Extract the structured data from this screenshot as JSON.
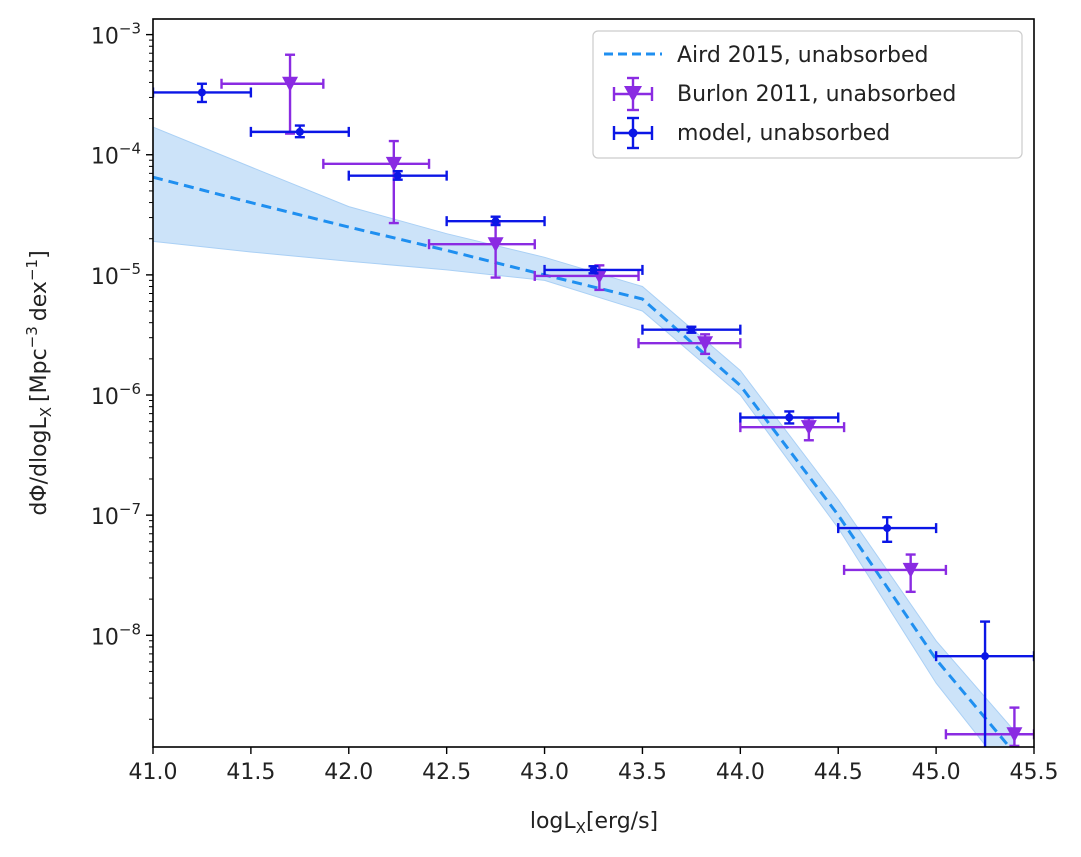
{
  "chart_data": {
    "type": "scatter",
    "xlabel": "logL",
    "xlabel_sub": "X",
    "xlabel_unit": "[erg/s]",
    "ylabel_prefix": "dΦ/dlogL",
    "ylabel_sub": "X",
    "ylabel_unit_open": "[Mpc",
    "ylabel_exp1": "−3",
    "ylabel_mid": "dex",
    "ylabel_exp2": "−1",
    "ylabel_close": "]",
    "xlim": [
      41.0,
      45.5
    ],
    "ylim_log10": [
      -8.93,
      -2.87
    ],
    "yscale": "log",
    "x_ticks": [
      {
        "v": 41.0,
        "label": "41.0"
      },
      {
        "v": 41.5,
        "label": "41.5"
      },
      {
        "v": 42.0,
        "label": "42.0"
      },
      {
        "v": 42.5,
        "label": "42.5"
      },
      {
        "v": 43.0,
        "label": "43.0"
      },
      {
        "v": 43.5,
        "label": "43.5"
      },
      {
        "v": 44.0,
        "label": "44.0"
      },
      {
        "v": 44.5,
        "label": "44.5"
      },
      {
        "v": 45.0,
        "label": "45.0"
      },
      {
        "v": 45.5,
        "label": "45.5"
      }
    ],
    "y_ticks": [
      {
        "exp": -3,
        "base": "10",
        "sup": "−3"
      },
      {
        "exp": -4,
        "base": "10",
        "sup": "−4"
      },
      {
        "exp": -5,
        "base": "10",
        "sup": "−5"
      },
      {
        "exp": -6,
        "base": "10",
        "sup": "−6"
      },
      {
        "exp": -7,
        "base": "10",
        "sup": "−7"
      },
      {
        "exp": -8,
        "base": "10",
        "sup": "−8"
      }
    ],
    "legend_position": "upper-right",
    "series": [
      {
        "name": "Aird 2015, unabsorbed",
        "kind": "line-band",
        "color": "#1f8ff0",
        "band_color": "#aad0f5",
        "x": [
          41.0,
          41.5,
          42.0,
          42.5,
          43.0,
          43.5,
          44.0,
          44.5,
          45.0,
          45.4
        ],
        "y": [
          6.5e-05,
          4e-05,
          2.5e-05,
          1.6e-05,
          1e-05,
          6.3e-06,
          1.2e-06,
          1e-07,
          6.3e-09,
          1.05e-09
        ],
        "y_low": [
          1.9e-05,
          1.55e-05,
          1.3e-05,
          1.1e-05,
          9e-06,
          5e-06,
          1e-06,
          7.8e-08,
          4e-09,
          6e-10
        ],
        "y_high": [
          0.00017,
          7.9e-05,
          3.7e-05,
          2.2e-05,
          1.4e-05,
          8e-06,
          1.6e-06,
          1.35e-07,
          9e-09,
          1.6e-09
        ]
      },
      {
        "name": "Burlon 2011, unabsorbed",
        "kind": "errorbar-triangle",
        "color": "#8a2be2",
        "points": [
          {
            "x": 41.7,
            "xlo": 41.35,
            "xhi": 41.87,
            "y": 0.00039,
            "ylo": 0.00015,
            "yhi": 0.00068
          },
          {
            "x": 42.23,
            "xlo": 41.87,
            "xhi": 42.41,
            "y": 8.4e-05,
            "ylo": 2.7e-05,
            "yhi": 0.00013
          },
          {
            "x": 42.75,
            "xlo": 42.41,
            "xhi": 42.95,
            "y": 1.8e-05,
            "ylo": 9.5e-06,
            "yhi": 2.7e-05
          },
          {
            "x": 43.28,
            "xlo": 42.95,
            "xhi": 43.48,
            "y": 9.8e-06,
            "ylo": 7.5e-06,
            "yhi": 1.2e-05
          },
          {
            "x": 43.82,
            "xlo": 43.48,
            "xhi": 44.0,
            "y": 2.7e-06,
            "ylo": 2.2e-06,
            "yhi": 3.2e-06
          },
          {
            "x": 44.35,
            "xlo": 44.0,
            "xhi": 44.53,
            "y": 5.4e-07,
            "ylo": 4.2e-07,
            "yhi": 6.4e-07
          },
          {
            "x": 44.87,
            "xlo": 44.53,
            "xhi": 45.05,
            "y": 3.5e-08,
            "ylo": 2.3e-08,
            "yhi": 4.7e-08
          },
          {
            "x": 45.4,
            "xlo": 45.05,
            "xhi": 45.5,
            "y": 1.5e-09,
            "ylo": 1.2e-09,
            "yhi": 2.5e-09
          }
        ]
      },
      {
        "name": "model, unabsorbed",
        "kind": "errorbar-dot",
        "color": "#0b16e6",
        "points": [
          {
            "x": 41.25,
            "xlo": 41.0,
            "xhi": 41.5,
            "y": 0.00033,
            "ylo": 0.000275,
            "yhi": 0.00039
          },
          {
            "x": 41.75,
            "xlo": 41.5,
            "xhi": 42.0,
            "y": 0.000155,
            "ylo": 0.00014,
            "yhi": 0.000175
          },
          {
            "x": 42.25,
            "xlo": 42.0,
            "xhi": 42.5,
            "y": 6.7e-05,
            "ylo": 6.2e-05,
            "yhi": 7.3e-05
          },
          {
            "x": 42.75,
            "xlo": 42.5,
            "xhi": 43.0,
            "y": 2.8e-05,
            "ylo": 2.6e-05,
            "yhi": 3.05e-05
          },
          {
            "x": 43.25,
            "xlo": 43.0,
            "xhi": 43.5,
            "y": 1.1e-05,
            "ylo": 1.03e-05,
            "yhi": 1.18e-05
          },
          {
            "x": 43.75,
            "xlo": 43.5,
            "xhi": 44.0,
            "y": 3.5e-06,
            "ylo": 3.3e-06,
            "yhi": 3.7e-06
          },
          {
            "x": 44.25,
            "xlo": 44.0,
            "xhi": 44.5,
            "y": 6.5e-07,
            "ylo": 5.8e-07,
            "yhi": 7.3e-07
          },
          {
            "x": 44.75,
            "xlo": 44.5,
            "xhi": 45.0,
            "y": 7.8e-08,
            "ylo": 6e-08,
            "yhi": 9.6e-08
          },
          {
            "x": 45.25,
            "xlo": 45.0,
            "xhi": 45.5,
            "y": 6.7e-09,
            "ylo": 1.15e-09,
            "yhi": 1.3e-08
          }
        ]
      }
    ]
  }
}
